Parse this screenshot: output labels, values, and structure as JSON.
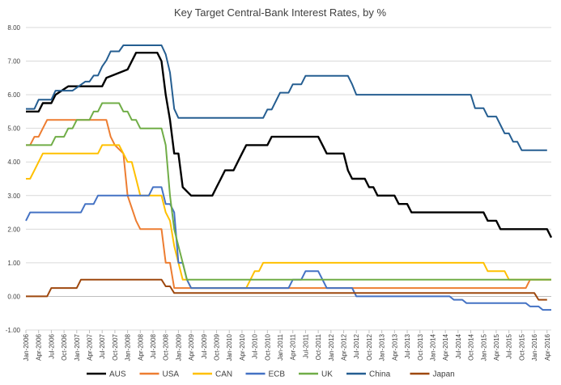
{
  "chart_data": {
    "type": "line",
    "title": "Key Target Central-Bank Interest Rates, by %",
    "xlabel": "",
    "ylabel": "",
    "ylim": [
      -1.0,
      8.0
    ],
    "yticks": [
      "-1.00",
      "0.00",
      "1.00",
      "2.00",
      "3.00",
      "4.00",
      "5.00",
      "6.00",
      "7.00",
      "8.00"
    ],
    "xlim": [
      "2006-01",
      "2016-04"
    ],
    "x_tick_labels": [
      "Jan-2006",
      "Apr-2006",
      "Jul-2006",
      "Oct-2006",
      "Jan-2007",
      "Apr-2007",
      "Jul-2007",
      "Oct-2007",
      "Jan-2008",
      "Apr-2008",
      "Jul-2008",
      "Oct-2008",
      "Jan-2009",
      "Apr-2009",
      "Jul-2009",
      "Oct-2009",
      "Jan-2010",
      "Apr-2010",
      "Jul-2010",
      "Oct-2010",
      "Jan-2011",
      "Apr-2011",
      "Jul-2011",
      "Oct-2011",
      "Jan-2012",
      "Apr-2012",
      "Jul-2012",
      "Oct-2012",
      "Jan-2013",
      "Apr-2013",
      "Jul-2013",
      "Oct-2013",
      "Jan-2014",
      "Apr-2014",
      "Jul-2014",
      "Oct-2014",
      "Jan-2015",
      "Apr-2015",
      "Jul-2015",
      "Oct-2015",
      "Jan-2016",
      "Apr-2016"
    ],
    "grid": "horizontal",
    "legend_position": "bottom",
    "series": [
      {
        "name": "AUS",
        "color": "#000000",
        "points": [
          [
            "2006-01",
            5.5
          ],
          [
            "2006-04",
            5.5
          ],
          [
            "2006-05",
            5.75
          ],
          [
            "2006-07",
            5.75
          ],
          [
            "2006-08",
            6.0
          ],
          [
            "2006-11",
            6.25
          ],
          [
            "2007-07",
            6.25
          ],
          [
            "2007-08",
            6.5
          ],
          [
            "2008-01",
            6.75
          ],
          [
            "2008-03",
            7.25
          ],
          [
            "2008-08",
            7.25
          ],
          [
            "2008-09",
            7.0
          ],
          [
            "2008-10",
            6.0
          ],
          [
            "2008-11",
            5.25
          ],
          [
            "2008-12",
            4.25
          ],
          [
            "2009-01",
            4.25
          ],
          [
            "2009-02",
            3.25
          ],
          [
            "2009-04",
            3.0
          ],
          [
            "2009-09",
            3.0
          ],
          [
            "2009-10",
            3.25
          ],
          [
            "2009-11",
            3.5
          ],
          [
            "2009-12",
            3.75
          ],
          [
            "2010-02",
            3.75
          ],
          [
            "2010-03",
            4.0
          ],
          [
            "2010-04",
            4.25
          ],
          [
            "2010-05",
            4.5
          ],
          [
            "2010-10",
            4.5
          ],
          [
            "2010-11",
            4.75
          ],
          [
            "2011-10",
            4.75
          ],
          [
            "2011-11",
            4.5
          ],
          [
            "2011-12",
            4.25
          ],
          [
            "2012-04",
            4.25
          ],
          [
            "2012-05",
            3.75
          ],
          [
            "2012-06",
            3.5
          ],
          [
            "2012-09",
            3.5
          ],
          [
            "2012-10",
            3.25
          ],
          [
            "2012-11",
            3.25
          ],
          [
            "2012-12",
            3.0
          ],
          [
            "2013-04",
            3.0
          ],
          [
            "2013-05",
            2.75
          ],
          [
            "2013-07",
            2.75
          ],
          [
            "2013-08",
            2.5
          ],
          [
            "2015-01",
            2.5
          ],
          [
            "2015-02",
            2.25
          ],
          [
            "2015-04",
            2.25
          ],
          [
            "2015-05",
            2.0
          ],
          [
            "2016-04",
            2.0
          ],
          [
            "2016-05",
            1.75
          ]
        ]
      },
      {
        "name": "USA",
        "color": "#ED7D31",
        "points": [
          [
            "2006-01",
            4.5
          ],
          [
            "2006-02",
            4.5
          ],
          [
            "2006-03",
            4.75
          ],
          [
            "2006-04",
            4.75
          ],
          [
            "2006-05",
            5.0
          ],
          [
            "2006-06",
            5.25
          ],
          [
            "2007-08",
            5.25
          ],
          [
            "2007-09",
            4.75
          ],
          [
            "2007-10",
            4.5
          ],
          [
            "2007-12",
            4.25
          ],
          [
            "2008-01",
            3.0
          ],
          [
            "2008-03",
            2.25
          ],
          [
            "2008-04",
            2.0
          ],
          [
            "2008-09",
            2.0
          ],
          [
            "2008-10",
            1.0
          ],
          [
            "2008-11",
            1.0
          ],
          [
            "2008-12",
            0.25
          ],
          [
            "2015-11",
            0.25
          ],
          [
            "2015-12",
            0.5
          ],
          [
            "2016-05",
            0.5
          ]
        ]
      },
      {
        "name": "CAN",
        "color": "#FFC000",
        "points": [
          [
            "2006-01",
            3.5
          ],
          [
            "2006-02",
            3.5
          ],
          [
            "2006-03",
            3.75
          ],
          [
            "2006-04",
            4.0
          ],
          [
            "2006-05",
            4.25
          ],
          [
            "2007-06",
            4.25
          ],
          [
            "2007-07",
            4.5
          ],
          [
            "2007-11",
            4.5
          ],
          [
            "2007-12",
            4.25
          ],
          [
            "2008-01",
            4.0
          ],
          [
            "2008-02",
            4.0
          ],
          [
            "2008-03",
            3.5
          ],
          [
            "2008-04",
            3.0
          ],
          [
            "2008-09",
            3.0
          ],
          [
            "2008-10",
            2.5
          ],
          [
            "2008-11",
            2.25
          ],
          [
            "2008-12",
            1.5
          ],
          [
            "2009-01",
            1.0
          ],
          [
            "2009-02",
            0.5
          ],
          [
            "2009-03",
            0.5
          ],
          [
            "2009-04",
            0.25
          ],
          [
            "2010-05",
            0.25
          ],
          [
            "2010-06",
            0.5
          ],
          [
            "2010-07",
            0.75
          ],
          [
            "2010-08",
            0.75
          ],
          [
            "2010-09",
            1.0
          ],
          [
            "2015-01",
            1.0
          ],
          [
            "2015-02",
            0.75
          ],
          [
            "2015-06",
            0.75
          ],
          [
            "2015-07",
            0.5
          ],
          [
            "2016-05",
            0.5
          ]
        ]
      },
      {
        "name": "ECB",
        "color": "#4472C4",
        "points": [
          [
            "2006-01",
            2.25
          ],
          [
            "2006-02",
            2.5
          ],
          [
            "2007-02",
            2.5
          ],
          [
            "2007-03",
            2.75
          ],
          [
            "2007-05",
            2.75
          ],
          [
            "2007-06",
            3.0
          ],
          [
            "2008-06",
            3.0
          ],
          [
            "2008-07",
            3.25
          ],
          [
            "2008-09",
            3.25
          ],
          [
            "2008-10",
            2.75
          ],
          [
            "2008-11",
            2.75
          ],
          [
            "2008-12",
            2.5
          ],
          [
            "2009-01",
            1.0
          ],
          [
            "2009-02",
            1.0
          ],
          [
            "2009-03",
            0.5
          ],
          [
            "2009-04",
            0.25
          ],
          [
            "2011-03",
            0.25
          ],
          [
            "2011-04",
            0.5
          ],
          [
            "2011-06",
            0.5
          ],
          [
            "2011-07",
            0.75
          ],
          [
            "2011-10",
            0.75
          ],
          [
            "2011-11",
            0.5
          ],
          [
            "2011-12",
            0.25
          ],
          [
            "2012-06",
            0.25
          ],
          [
            "2012-07",
            0.0
          ],
          [
            "2014-05",
            0.0
          ],
          [
            "2014-06",
            -0.1
          ],
          [
            "2014-08",
            -0.1
          ],
          [
            "2014-09",
            -0.2
          ],
          [
            "2015-11",
            -0.2
          ],
          [
            "2015-12",
            -0.3
          ],
          [
            "2016-02",
            -0.3
          ],
          [
            "2016-03",
            -0.4
          ],
          [
            "2016-05",
            -0.4
          ]
        ]
      },
      {
        "name": "UK",
        "color": "#70AD47",
        "points": [
          [
            "2006-01",
            4.5
          ],
          [
            "2006-07",
            4.5
          ],
          [
            "2006-08",
            4.75
          ],
          [
            "2006-10",
            4.75
          ],
          [
            "2006-11",
            5.0
          ],
          [
            "2006-12",
            5.0
          ],
          [
            "2007-01",
            5.25
          ],
          [
            "2007-04",
            5.25
          ],
          [
            "2007-05",
            5.5
          ],
          [
            "2007-06",
            5.5
          ],
          [
            "2007-07",
            5.75
          ],
          [
            "2007-11",
            5.75
          ],
          [
            "2007-12",
            5.5
          ],
          [
            "2008-01",
            5.5
          ],
          [
            "2008-02",
            5.25
          ],
          [
            "2008-03",
            5.25
          ],
          [
            "2008-04",
            5.0
          ],
          [
            "2008-09",
            5.0
          ],
          [
            "2008-10",
            4.5
          ],
          [
            "2008-11",
            3.0
          ],
          [
            "2008-12",
            2.0
          ],
          [
            "2009-01",
            1.5
          ],
          [
            "2009-02",
            1.0
          ],
          [
            "2009-03",
            0.5
          ],
          [
            "2016-05",
            0.5
          ]
        ]
      },
      {
        "name": "China",
        "color": "#255E91",
        "points": [
          [
            "2006-01",
            5.58
          ],
          [
            "2006-03",
            5.58
          ],
          [
            "2006-04",
            5.85
          ],
          [
            "2006-07",
            5.85
          ],
          [
            "2006-08",
            6.12
          ],
          [
            "2006-12",
            6.12
          ],
          [
            "2007-03",
            6.39
          ],
          [
            "2007-04",
            6.39
          ],
          [
            "2007-05",
            6.57
          ],
          [
            "2007-06",
            6.57
          ],
          [
            "2007-07",
            6.84
          ],
          [
            "2007-08",
            7.02
          ],
          [
            "2007-09",
            7.29
          ],
          [
            "2007-11",
            7.29
          ],
          [
            "2007-12",
            7.47
          ],
          [
            "2008-09",
            7.47
          ],
          [
            "2008-10",
            7.2
          ],
          [
            "2008-11",
            6.66
          ],
          [
            "2008-12",
            5.58
          ],
          [
            "2009-01",
            5.31
          ],
          [
            "2010-09",
            5.31
          ],
          [
            "2010-10",
            5.56
          ],
          [
            "2010-11",
            5.56
          ],
          [
            "2010-12",
            5.81
          ],
          [
            "2011-01",
            6.06
          ],
          [
            "2011-03",
            6.06
          ],
          [
            "2011-04",
            6.31
          ],
          [
            "2011-06",
            6.31
          ],
          [
            "2011-07",
            6.56
          ],
          [
            "2012-05",
            6.56
          ],
          [
            "2012-06",
            6.31
          ],
          [
            "2012-07",
            6.0
          ],
          [
            "2014-10",
            6.0
          ],
          [
            "2014-11",
            5.6
          ],
          [
            "2015-01",
            5.6
          ],
          [
            "2015-02",
            5.35
          ],
          [
            "2015-04",
            5.35
          ],
          [
            "2015-05",
            5.1
          ],
          [
            "2015-06",
            4.85
          ],
          [
            "2015-07",
            4.85
          ],
          [
            "2015-08",
            4.6
          ],
          [
            "2015-09",
            4.6
          ],
          [
            "2015-10",
            4.35
          ],
          [
            "2016-04",
            4.35
          ]
        ]
      },
      {
        "name": "Japan",
        "color": "#9E480E",
        "points": [
          [
            "2006-01",
            0.0
          ],
          [
            "2006-06",
            0.0
          ],
          [
            "2006-07",
            0.25
          ],
          [
            "2007-01",
            0.25
          ],
          [
            "2007-02",
            0.5
          ],
          [
            "2008-09",
            0.5
          ],
          [
            "2008-10",
            0.3
          ],
          [
            "2008-11",
            0.3
          ],
          [
            "2008-12",
            0.1
          ],
          [
            "2016-01",
            0.1
          ],
          [
            "2016-02",
            -0.1
          ],
          [
            "2016-04",
            -0.1
          ]
        ]
      }
    ]
  }
}
